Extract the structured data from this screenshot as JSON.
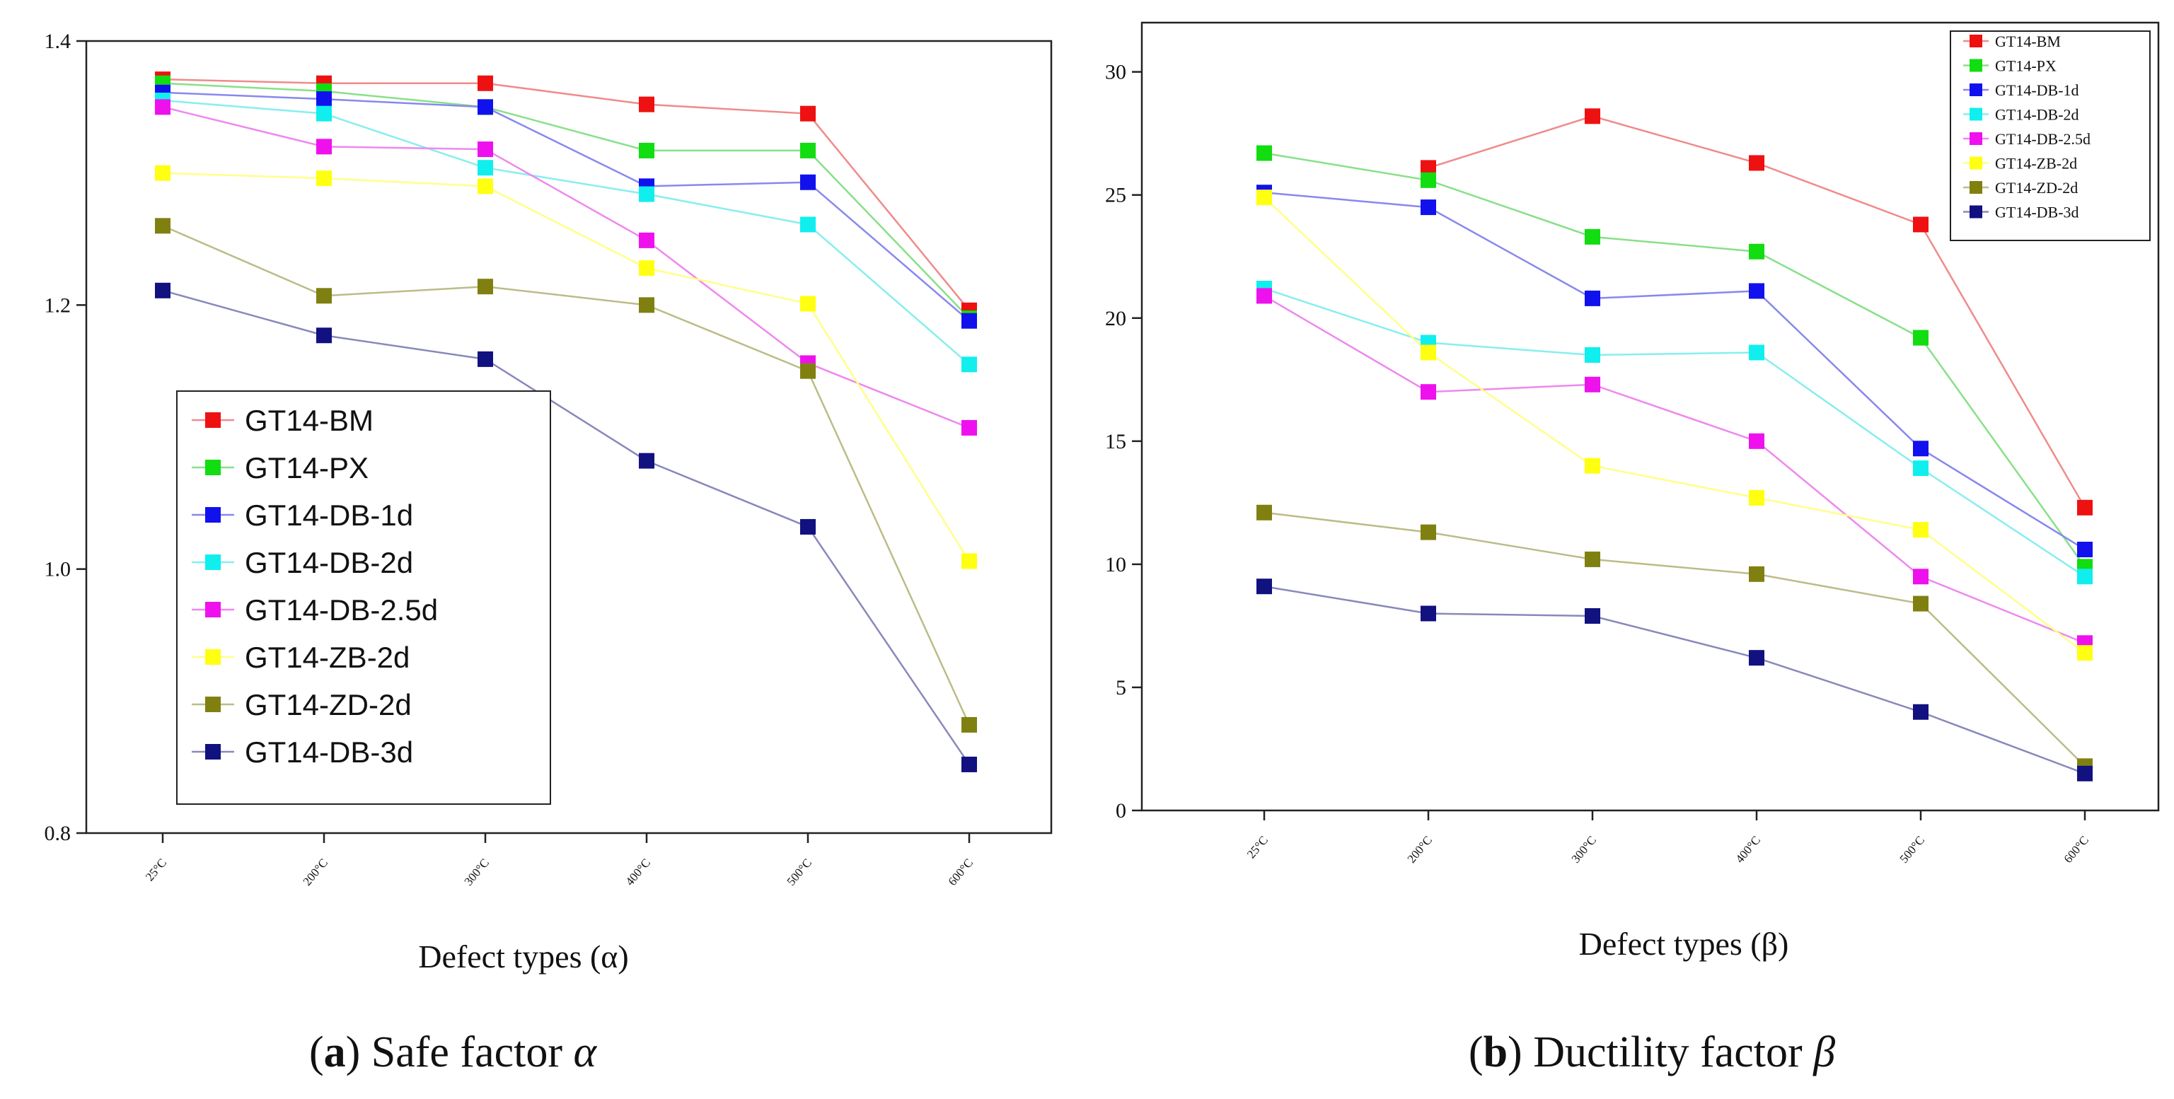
{
  "captions": {
    "a_letter": "a",
    "a_text": " Safe factor ",
    "a_symbol": "α",
    "b_letter": "b",
    "b_text": " Ductility factor ",
    "b_symbol": "β"
  },
  "chart_data": [
    {
      "type": "line",
      "xlabel": "Defect types (α)",
      "ylabel": "",
      "categories": [
        "25°C",
        "200°C",
        "300°C",
        "400°C",
        "500°C",
        "600°C"
      ],
      "ylim": [
        0.8,
        1.4
      ],
      "yticks": [
        "0.8",
        "1.0",
        "1.2",
        "1.4"
      ],
      "yticks_values": [
        0.8,
        1.0,
        1.2,
        1.4
      ],
      "grid": false,
      "legend_position": "bottom-left",
      "series": [
        {
          "name": "GT14-BM",
          "marker": "#ee1111",
          "line": "#f08a8a",
          "values": [
            1.371,
            1.368,
            1.368,
            1.352,
            1.345,
            1.196
          ]
        },
        {
          "name": "GT14-PX",
          "marker": "#11dd11",
          "line": "#88e088",
          "values": [
            1.368,
            1.362,
            1.35,
            1.317,
            1.317,
            1.19
          ]
        },
        {
          "name": "GT14-DB-1d",
          "marker": "#1111ee",
          "line": "#8888ee",
          "values": [
            1.361,
            1.356,
            1.35,
            1.29,
            1.293,
            1.188
          ]
        },
        {
          "name": "GT14-DB-2d",
          "marker": "#11eeee",
          "line": "#88eeee",
          "values": [
            1.355,
            1.345,
            1.304,
            1.284,
            1.261,
            1.155
          ]
        },
        {
          "name": "GT14-DB-2.5d",
          "marker": "#ee11ee",
          "line": "#ee88ee",
          "values": [
            1.35,
            1.32,
            1.318,
            1.249,
            1.156,
            1.107
          ]
        },
        {
          "name": "GT14-ZB-2d",
          "marker": "#ffff11",
          "line": "#ffff88",
          "values": [
            1.3,
            1.296,
            1.29,
            1.228,
            1.201,
            1.006
          ]
        },
        {
          "name": "GT14-ZD-2d",
          "marker": "#808011",
          "line": "#bcbc88",
          "values": [
            1.26,
            1.207,
            1.214,
            1.2,
            1.15,
            0.882
          ]
        },
        {
          "name": "GT14-DB-3d",
          "marker": "#111180",
          "line": "#8888bc",
          "values": [
            1.211,
            1.177,
            1.159,
            1.082,
            1.032,
            0.852
          ]
        }
      ]
    },
    {
      "type": "line",
      "xlabel": "Defect types (β)",
      "ylabel": "",
      "categories": [
        "25°C",
        "200°C",
        "300°C",
        "400°C",
        "500°C",
        "600°C"
      ],
      "ylim": [
        0,
        32
      ],
      "yticks": [
        "0",
        "5",
        "10",
        "15",
        "20",
        "25",
        "30"
      ],
      "yticks_values": [
        0,
        5,
        10,
        15,
        20,
        25,
        30
      ],
      "grid": false,
      "legend_position": "top-right",
      "series": [
        {
          "name": "GT14-BM",
          "marker": "#ee1111",
          "line": "#f08a8a",
          "values": [
            null,
            26.1,
            28.2,
            26.3,
            23.8,
            12.3
          ]
        },
        {
          "name": "GT14-PX",
          "marker": "#11dd11",
          "line": "#88e088",
          "values": [
            26.7,
            25.6,
            23.3,
            22.7,
            19.2,
            9.9
          ]
        },
        {
          "name": "GT14-DB-1d",
          "marker": "#1111ee",
          "line": "#8888ee",
          "values": [
            25.1,
            24.5,
            20.8,
            21.1,
            14.7,
            10.6
          ]
        },
        {
          "name": "GT14-DB-2d",
          "marker": "#11eeee",
          "line": "#88eeee",
          "values": [
            21.2,
            19.0,
            18.5,
            18.6,
            13.9,
            9.5
          ]
        },
        {
          "name": "GT14-DB-2.5d",
          "marker": "#ee11ee",
          "line": "#ee88ee",
          "values": [
            20.9,
            17.0,
            17.3,
            15.0,
            9.5,
            6.8
          ]
        },
        {
          "name": "GT14-ZB-2d",
          "marker": "#ffff11",
          "line": "#ffff88",
          "values": [
            24.9,
            18.6,
            14.0,
            12.7,
            11.4,
            6.4
          ]
        },
        {
          "name": "GT14-ZD-2d",
          "marker": "#808011",
          "line": "#bcbc88",
          "values": [
            12.1,
            11.3,
            10.2,
            9.6,
            8.4,
            1.8
          ]
        },
        {
          "name": "GT14-DB-3d",
          "marker": "#111180",
          "line": "#8888bc",
          "values": [
            9.1,
            8.0,
            7.9,
            6.2,
            4.0,
            1.5
          ]
        }
      ]
    }
  ]
}
